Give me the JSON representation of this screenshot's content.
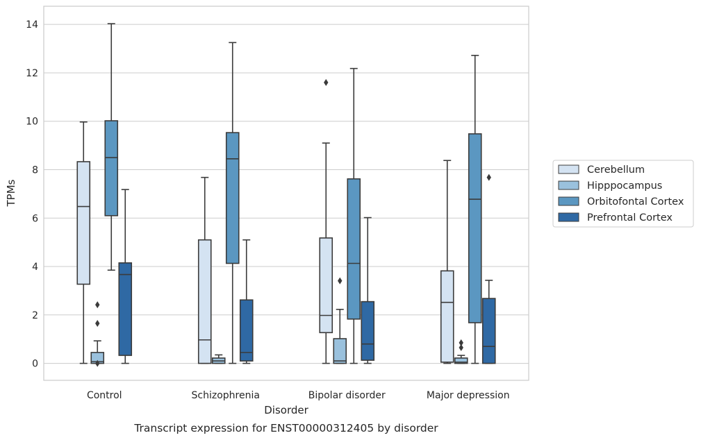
{
  "chart_data": {
    "type": "boxplot",
    "caption": "Transcript expression for ENST00000312405 by disorder",
    "xlabel": "Disorder",
    "ylabel": "TPMs",
    "ylim": [
      -0.7,
      14.75
    ],
    "yticks": [
      0,
      2,
      4,
      6,
      8,
      10,
      12,
      14
    ],
    "grid": "horizontal",
    "legend_position": "right",
    "categories": [
      "Control",
      "Schizophrenia",
      "Bipolar disorder",
      "Major depression"
    ],
    "series": [
      {
        "name": "Cerebellum",
        "color": "#d4e3f2",
        "boxes": [
          {
            "whislo": 0,
            "q1": 3.27,
            "med": 6.48,
            "q3": 8.33,
            "whishi": 9.97,
            "fliers": []
          },
          {
            "whislo": 0,
            "q1": 0,
            "med": 0.97,
            "q3": 5.1,
            "whishi": 7.68,
            "fliers": []
          },
          {
            "whislo": 0,
            "q1": 1.27,
            "med": 1.98,
            "q3": 5.18,
            "whishi": 9.1,
            "fliers": [
              11.6
            ]
          },
          {
            "whislo": 0,
            "q1": 0.05,
            "med": 2.52,
            "q3": 3.82,
            "whishi": 8.38,
            "fliers": []
          }
        ]
      },
      {
        "name": "Hipppocampus",
        "color": "#9ac1dd",
        "boxes": [
          {
            "whislo": 0,
            "q1": 0,
            "med": 0.07,
            "q3": 0.45,
            "whishi": 0.93,
            "fliers": [
              2.42,
              1.65,
              0
            ]
          },
          {
            "whislo": 0,
            "q1": 0,
            "med": 0.1,
            "q3": 0.22,
            "whishi": 0.35,
            "fliers": []
          },
          {
            "whislo": 0,
            "q1": 0,
            "med": 0.1,
            "q3": 1.02,
            "whishi": 2.23,
            "fliers": [
              3.41
            ]
          },
          {
            "whislo": 0,
            "q1": 0,
            "med": 0.05,
            "q3": 0.22,
            "whishi": 0.33,
            "fliers": [
              0.85,
              0.65
            ]
          }
        ]
      },
      {
        "name": "Orbitofontal Cortex",
        "color": "#5b97c1",
        "boxes": [
          {
            "whislo": 3.85,
            "q1": 6.1,
            "med": 8.5,
            "q3": 10.02,
            "whishi": 14.03,
            "fliers": []
          },
          {
            "whislo": 0,
            "q1": 4.13,
            "med": 8.45,
            "q3": 9.53,
            "whishi": 13.25,
            "fliers": []
          },
          {
            "whislo": 0,
            "q1": 1.83,
            "med": 4.13,
            "q3": 7.62,
            "whishi": 12.18,
            "fliers": []
          },
          {
            "whislo": 0,
            "q1": 1.68,
            "med": 6.78,
            "q3": 9.48,
            "whishi": 12.72,
            "fliers": []
          }
        ]
      },
      {
        "name": "Prefrontal Cortex",
        "color": "#2f69a4",
        "boxes": [
          {
            "whislo": 0,
            "q1": 0.33,
            "med": 3.67,
            "q3": 4.15,
            "whishi": 7.18,
            "fliers": []
          },
          {
            "whislo": 0,
            "q1": 0.1,
            "med": 0.45,
            "q3": 2.62,
            "whishi": 5.1,
            "fliers": []
          },
          {
            "whislo": 0,
            "q1": 0.13,
            "med": 0.8,
            "q3": 2.55,
            "whishi": 6.02,
            "fliers": []
          },
          {
            "whislo": 0,
            "q1": 0,
            "med": 0.7,
            "q3": 2.68,
            "whishi": 3.43,
            "fliers": [
              7.68
            ]
          }
        ]
      }
    ]
  }
}
